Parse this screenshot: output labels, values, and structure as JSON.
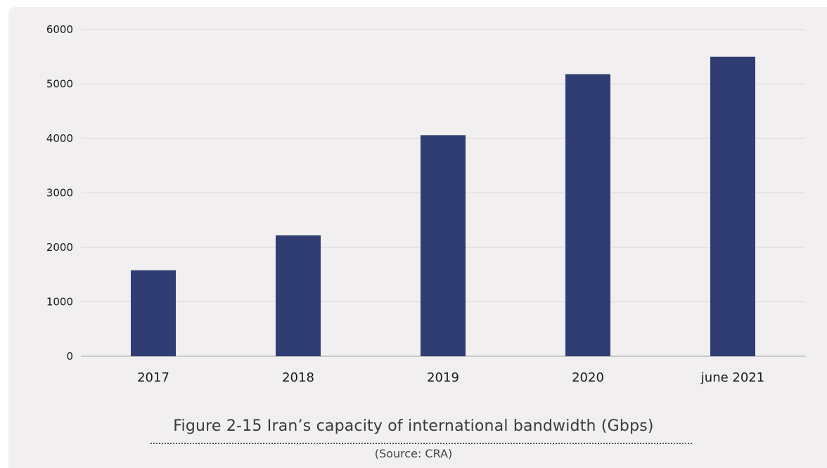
{
  "chart_data": {
    "type": "bar",
    "categories": [
      "2017",
      "2018",
      "2019",
      "2020",
      "june 2021"
    ],
    "values": [
      1580,
      2220,
      4060,
      5180,
      5500
    ],
    "ylim": [
      0,
      6000
    ],
    "yticks": [
      "0",
      "1000",
      "2000",
      "3000",
      "4000",
      "5000",
      "6000"
    ],
    "grid": true,
    "bar_color": "#2f3d73",
    "title": "Figure 2-15 Iran’s capacity of international bandwidth (Gbps)",
    "source": "(Source: CRA)"
  }
}
